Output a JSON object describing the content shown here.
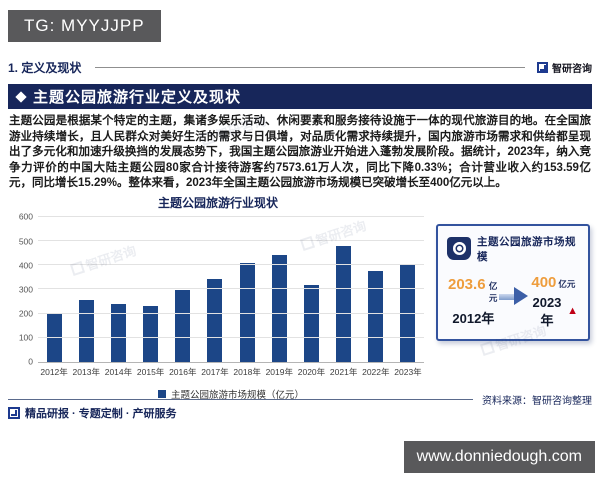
{
  "overlay": {
    "tg_label": "TG: MYYJJPP",
    "url_label": "www.donniedough.com"
  },
  "header": {
    "section_label": "1. 定义及现状",
    "brand_name": "智研咨询",
    "banner_title": "主题公园旅游行业定义及现状"
  },
  "intro_paragraph": "主题公园是根据某个特定的主题，集诸多娱乐活动、休闲要素和服务接待设施于一体的现代旅游目的地。在全国旅游业持续增长，且人民群众对美好生活的需求与日俱增，对品质化需求持续提升，国内旅游市场需求和供给都呈现出了多元化和加速升级换挡的发展态势下，我国主题公园旅游业开始进入蓬勃发展阶段。据统计，2023年，纳入竞争力评价的中国大陆主题公园80家合计接待游客约7573.61万人次，同比下降0.33%；合计营业收入约153.59亿元，同比增长15.29%。整体来看，2023年全国主题公园旅游市场规模已突破增长至400亿元以上。",
  "chart_data": {
    "type": "bar",
    "title": "主题公园旅游行业现状",
    "categories": [
      "2012年",
      "2013年",
      "2014年",
      "2015年",
      "2016年",
      "2017年",
      "2018年",
      "2019年",
      "2020年",
      "2021年",
      "2022年",
      "2023年"
    ],
    "values": [
      203.6,
      255,
      238,
      232,
      296,
      342,
      410,
      442,
      320,
      480,
      378,
      400
    ],
    "legend": [
      "主题公园旅游市场规模（亿元）"
    ],
    "xlabel": "",
    "ylabel": "",
    "ylim": [
      0,
      600
    ],
    "ytick_step": 100,
    "grid": true,
    "legend_position": "bottom",
    "bar_color": "#1c4687"
  },
  "highlight_card": {
    "title": "主题公园旅游市场规模",
    "from": {
      "value": "203.6",
      "unit": "亿元",
      "year": "2012年"
    },
    "to": {
      "value": "400",
      "unit": "亿元",
      "year": "2023年"
    }
  },
  "footer": {
    "services_label": "精品研报 · 专题定制 · 产研服务",
    "source_label": "资料来源：智研咨询整理"
  },
  "watermark_text": "智研咨询",
  "colors": {
    "brand_navy": "#17265a",
    "bar_blue": "#1c4687",
    "highlight_orange": "#ee9d3d",
    "alert_red": "#c00016",
    "overlay_gray": "#59595b"
  }
}
